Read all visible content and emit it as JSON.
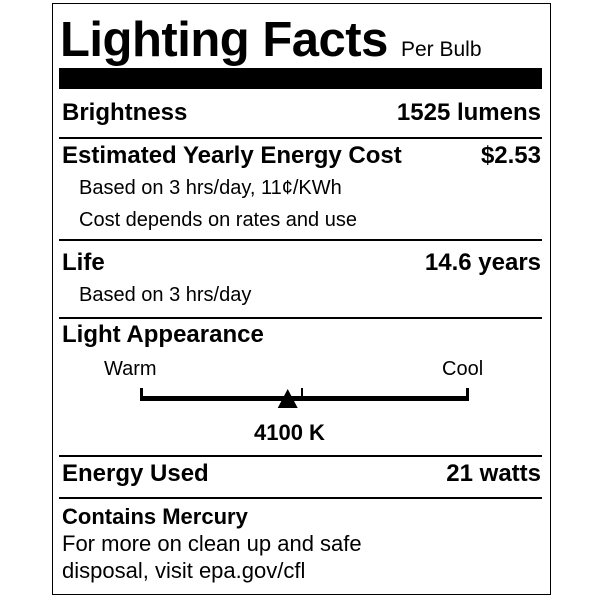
{
  "title": "Lighting Facts",
  "subtitle": "Per Bulb",
  "brightness": {
    "label": "Brightness",
    "value": "1525 lumens"
  },
  "energy_cost": {
    "label": "Estimated Yearly Energy Cost",
    "value": "$2.53",
    "note1": "Based on 3 hrs/day, 11¢/KWh",
    "note2": "Cost depends on rates and use"
  },
  "life": {
    "label": "Life",
    "value": "14.6 years",
    "note": "Based on 3 hrs/day"
  },
  "light_appearance": {
    "label": "Light Appearance",
    "warm_label": "Warm",
    "cool_label": "Cool",
    "value": "4100 K",
    "position_fraction": 0.45
  },
  "energy_used": {
    "label": "Energy Used",
    "value": "21 watts"
  },
  "mercury": {
    "label": "Contains Mercury",
    "line1": "For more on clean up and safe",
    "line2": "disposal, visit epa.gov/cfl"
  }
}
